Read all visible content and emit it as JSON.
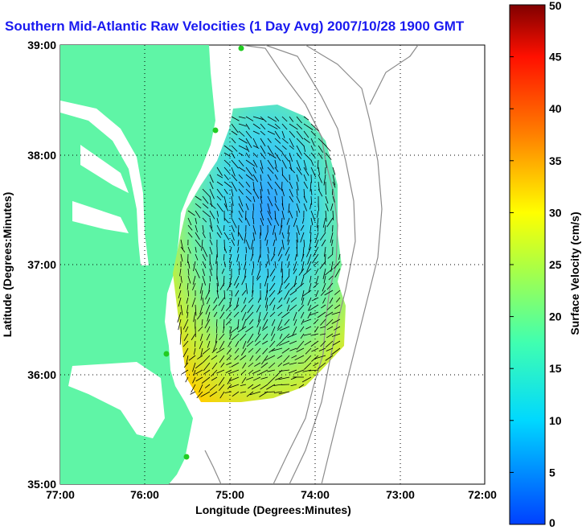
{
  "title": "Southern Mid-Atlantic Raw Velocities (1 Day Avg) 2007/10/28 1900 GMT",
  "map": {
    "xlabel": "Longitude (Degrees:Minutes)",
    "ylabel": "Latitude (Degrees:Minutes)",
    "x_ticks": [
      "77:00",
      "76:00",
      "75:00",
      "74:00",
      "73:00",
      "72:00"
    ],
    "y_ticks": [
      "39:00",
      "38:00",
      "37:00",
      "36:00",
      "35:00"
    ],
    "lon_range": [
      -77,
      -72
    ],
    "lat_range": [
      35,
      39
    ],
    "grid": "dotted"
  },
  "colorbar": {
    "label": "Surface Velocity (cm/s)",
    "range": [
      0,
      50
    ],
    "ticks": [
      "0",
      "5",
      "10",
      "15",
      "20",
      "25",
      "30",
      "35",
      "40",
      "45",
      "50"
    ],
    "colormap": "jet"
  },
  "colors": {
    "land": "#5ff5a6",
    "title": "#1a1af0",
    "bathymetry": "#8c8c8c",
    "station": "#22cc22"
  }
}
